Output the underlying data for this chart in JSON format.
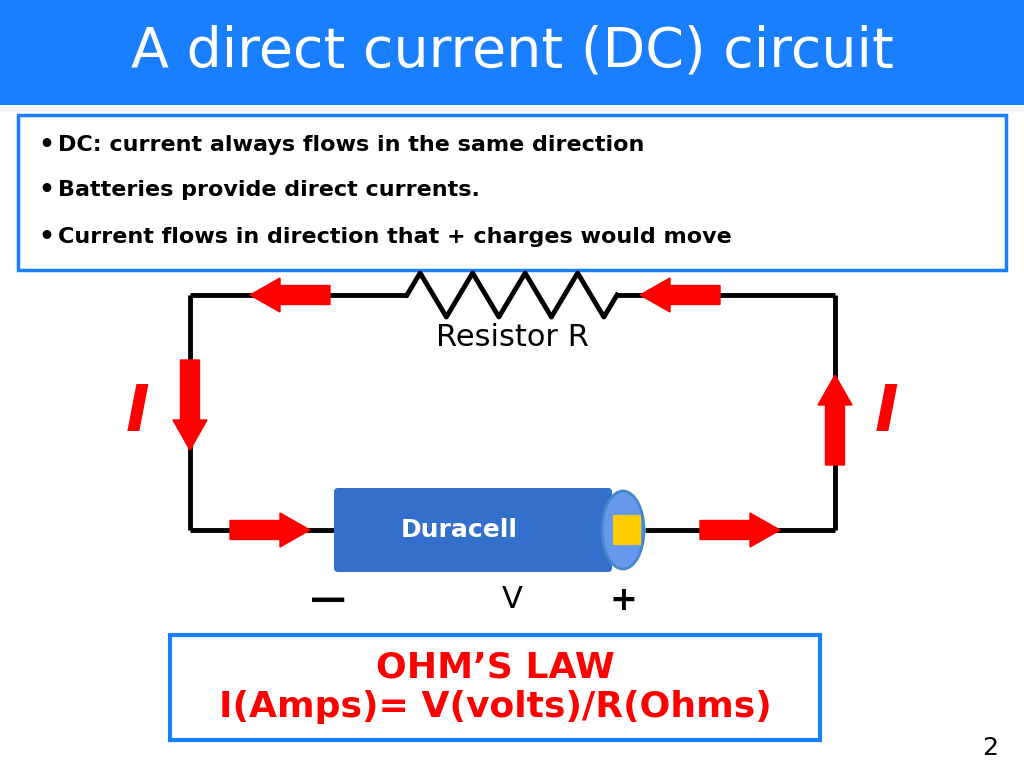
{
  "title": "A direct current (DC) circuit",
  "title_bg": "#1a7fff",
  "title_color": "white",
  "title_fontsize": 40,
  "bullets": [
    "DC: current always flows in the same direction",
    "Batteries provide direct currents.",
    "Current flows in direction that + charges would move"
  ],
  "bullet_fontsize": 16,
  "ohm_line1": "OHM’S LAW",
  "ohm_line2": "I(Amps)= V(volts)/R(Ohms)",
  "ohm_color": "red",
  "ohm_fontsize": 24,
  "ohm_box_color": "#1a7fff",
  "resistor_label": "Resistor R",
  "battery_label": "Duracell",
  "battery_color": "#3370cc",
  "battery_cap_color": "#ffcc00",
  "battery_end_color": "#6699ee",
  "arrow_color": "red",
  "wire_color": "black",
  "minus_label": "—",
  "v_label": "V",
  "plus_label": "+",
  "i_label": "I",
  "page_number": "2",
  "background": "white",
  "bullet_box_color": "#1a7fff"
}
